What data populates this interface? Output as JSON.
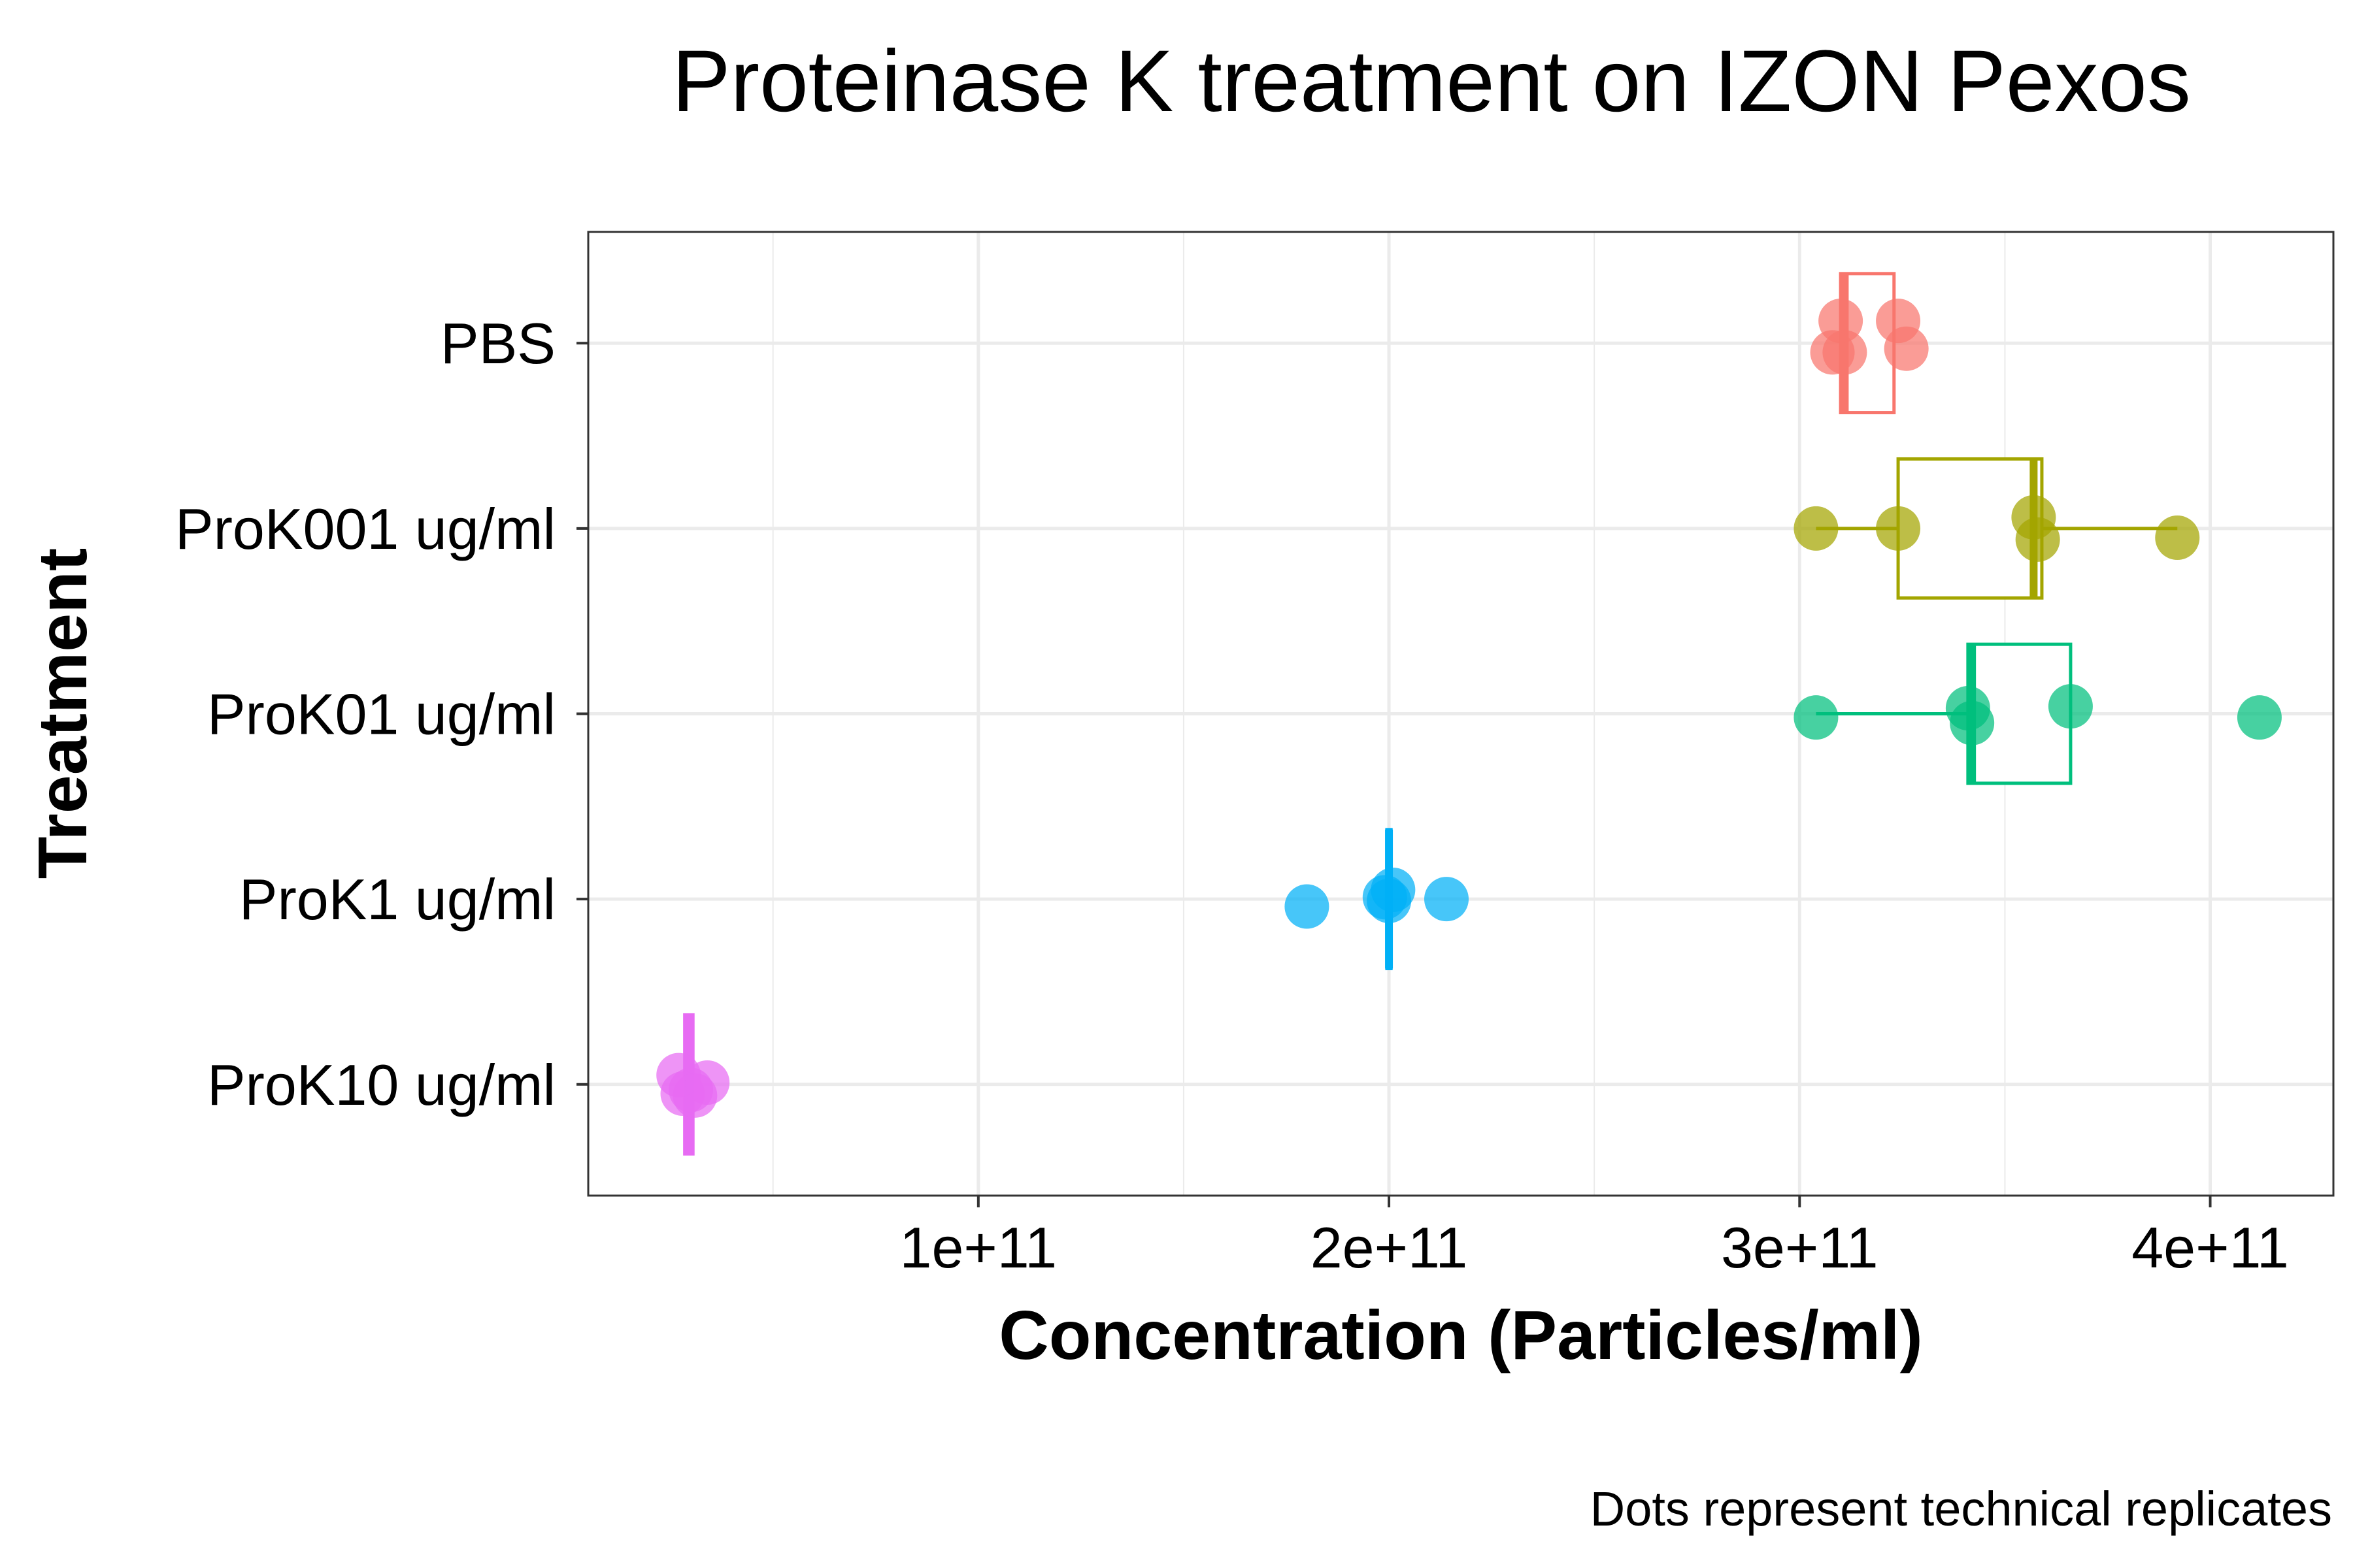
{
  "chart_data": {
    "type": "box",
    "title": "Proteinase K treatment on IZON Pexos",
    "xlabel": "Concentration (Particles/ml)",
    "ylabel": "Treatment",
    "caption": "Dots represent technical replicates",
    "xlim": [
      5000000000,
      430000000000
    ],
    "x_ticks": [
      100000000000,
      200000000000,
      300000000000,
      400000000000
    ],
    "x_tick_labels": [
      "1e+11",
      "2e+11",
      "3e+11",
      "4e+11"
    ],
    "grid": true,
    "legend": "none",
    "categories": [
      "PBS",
      "ProK001 ug/ml",
      "ProK01 ug/ml",
      "ProK1 ug/ml",
      "ProK10 ug/ml"
    ],
    "series": [
      {
        "category": "PBS",
        "color": "#F8766D",
        "box": {
          "min": 310000000000,
          "q1": 310000000000,
          "median": 311000000000,
          "q3": 323000000000,
          "max": 323000000000
        },
        "points": [
          {
            "x": 310000000000,
            "jitter": 0.12
          },
          {
            "x": 324000000000,
            "jitter": 0.12
          },
          {
            "x": 308000000000,
            "jitter": -0.05
          },
          {
            "x": 311000000000,
            "jitter": -0.05
          },
          {
            "x": 326000000000,
            "jitter": -0.03
          }
        ]
      },
      {
        "category": "ProK001 ug/ml",
        "color": "#A3A500",
        "box": {
          "min": 304000000000,
          "q1": 324000000000,
          "median": 357000000000,
          "q3": 359000000000,
          "max": 392000000000
        },
        "points": [
          {
            "x": 304000000000,
            "jitter": 0.0
          },
          {
            "x": 324000000000,
            "jitter": 0.0
          },
          {
            "x": 357000000000,
            "jitter": 0.06
          },
          {
            "x": 358000000000,
            "jitter": -0.06
          },
          {
            "x": 392000000000,
            "jitter": -0.05
          }
        ]
      },
      {
        "category": "ProK01 ug/ml",
        "color": "#00BF7D",
        "box": {
          "min": 304000000000,
          "q1": 341000000000,
          "median": 342000000000,
          "q3": 366000000000,
          "max": 366000000000
        },
        "points": [
          {
            "x": 304000000000,
            "jitter": -0.02
          },
          {
            "x": 341000000000,
            "jitter": 0.03
          },
          {
            "x": 342000000000,
            "jitter": -0.05
          },
          {
            "x": 366000000000,
            "jitter": 0.04
          },
          {
            "x": 412000000000,
            "jitter": -0.02
          }
        ]
      },
      {
        "category": "ProK1 ug/ml",
        "color": "#00B0F6",
        "box": {
          "min": 199000000000,
          "q1": 199500000000,
          "median": 200000000000,
          "q3": 200500000000,
          "max": 201000000000
        },
        "points": [
          {
            "x": 180000000000,
            "jitter": -0.04
          },
          {
            "x": 199000000000,
            "jitter": 0.01
          },
          {
            "x": 201000000000,
            "jitter": 0.05
          },
          {
            "x": 200000000000,
            "jitter": -0.01
          },
          {
            "x": 214000000000,
            "jitter": 0.0
          }
        ]
      },
      {
        "category": "ProK10 ug/ml",
        "color": "#E76BF3",
        "box": {
          "min": 28500000000,
          "q1": 28500000000,
          "median": 29500000000,
          "q3": 30500000000,
          "max": 30500000000
        },
        "points": [
          {
            "x": 27000000000,
            "jitter": 0.05
          },
          {
            "x": 28000000000,
            "jitter": -0.05
          },
          {
            "x": 30000000000,
            "jitter": -0.03
          },
          {
            "x": 31000000000,
            "jitter": -0.06
          },
          {
            "x": 34000000000,
            "jitter": 0.01
          }
        ]
      }
    ]
  }
}
